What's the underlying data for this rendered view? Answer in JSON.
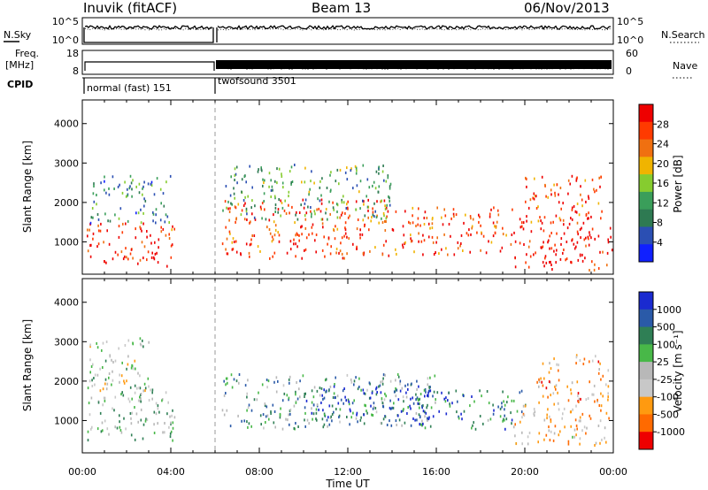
{
  "header": {
    "station": "Inuvik (fitACF)",
    "beam": "Beam 13",
    "date": "06/Nov/2013"
  },
  "left_labels": {
    "nsky": "N.Sky",
    "freq": "Freq.",
    "freq_unit": "[MHz]",
    "cpid": "CPID"
  },
  "right_labels": {
    "nsearch": "N.Search",
    "nave": "Nave"
  },
  "noise_axis_left": [
    "10^5",
    "10^0"
  ],
  "noise_axis_right": [
    "10^5",
    "10^0"
  ],
  "freq_axis_left": [
    "18",
    "8"
  ],
  "nave_axis_right": [
    "60",
    "0"
  ],
  "cpid_segments": [
    {
      "label": "normal (fast) 151",
      "start": 0.0,
      "end": 6.0
    },
    {
      "label": "twofsound 3501",
      "start": 6.0,
      "end": 24.0
    }
  ],
  "colors": {
    "power_scale": [
      "#1020ff",
      "#2b4fb3",
      "#2e7a52",
      "#3a9e5a",
      "#86cc2f",
      "#f0b400",
      "#f07010",
      "#ff3a00",
      "#ee0000"
    ],
    "velocity_scale": [
      "#1a2ad0",
      "#2a5aa8",
      "#2f7f55",
      "#48b848",
      "#b8b8b8",
      "#c8c8c8",
      "#ff9a10",
      "#ff6a00",
      "#ee0000"
    ]
  },
  "chart_data": [
    {
      "type": "heatmap",
      "title": "Power",
      "xlabel": "Time UT",
      "ylabel": "Slant Range [km]",
      "x_ticks": [
        "00:00",
        "04:00",
        "08:00",
        "12:00",
        "16:00",
        "20:00",
        "00:00"
      ],
      "y_ticks": [
        1000,
        2000,
        3000,
        4000
      ],
      "xlim": [
        0,
        24
      ],
      "ylim": [
        180,
        4600
      ],
      "colorbar": {
        "label": "Power [dB]",
        "ticks": [
          4,
          8,
          12,
          16,
          20,
          24,
          28
        ],
        "range": [
          0,
          32
        ]
      },
      "echo_regions": [
        {
          "x": [
            0.2,
            4.2
          ],
          "y": [
            400,
            1500
          ],
          "value": 28
        },
        {
          "x": [
            0.3,
            4.0
          ],
          "y": [
            1500,
            2700
          ],
          "value": 10
        },
        {
          "x": [
            6.3,
            14.0
          ],
          "y": [
            600,
            2100
          ],
          "value": 26
        },
        {
          "x": [
            6.3,
            14.0
          ],
          "y": [
            1600,
            3000
          ],
          "value": 12
        },
        {
          "x": [
            14.0,
            19.5
          ],
          "y": [
            700,
            1900
          ],
          "value": 26
        },
        {
          "x": [
            19.5,
            24.0
          ],
          "y": [
            300,
            1700
          ],
          "value": 30
        },
        {
          "x": [
            20.0,
            23.6
          ],
          "y": [
            1500,
            2700
          ],
          "value": 26
        }
      ]
    },
    {
      "type": "heatmap",
      "title": "Velocity",
      "xlabel": "Time UT",
      "ylabel": "Slant Range [km]",
      "x_ticks": [
        "00:00",
        "04:00",
        "08:00",
        "12:00",
        "16:00",
        "20:00",
        "00:00"
      ],
      "y_ticks": [
        1000,
        2000,
        3000,
        4000
      ],
      "xlim": [
        0,
        24
      ],
      "ylim": [
        180,
        4600
      ],
      "colorbar": {
        "label": "Velocity [m s⁻¹]",
        "ticks": [
          1000,
          500,
          100,
          25,
          -25,
          -100,
          -500,
          -1000
        ],
        "range": [
          -1000,
          1000
        ]
      },
      "echo_regions": [
        {
          "x": [
            0.2,
            4.2
          ],
          "y": [
            500,
            1900
          ],
          "value": 100
        },
        {
          "x": [
            0.3,
            3.0
          ],
          "y": [
            1700,
            3200
          ],
          "value": 0
        },
        {
          "x": [
            6.3,
            16.0
          ],
          "y": [
            800,
            2200
          ],
          "value": 300
        },
        {
          "x": [
            10.0,
            16.0
          ],
          "y": [
            900,
            1900
          ],
          "value": 800
        },
        {
          "x": [
            15.0,
            20.0
          ],
          "y": [
            800,
            1800
          ],
          "value": 500
        },
        {
          "x": [
            19.5,
            23.8
          ],
          "y": [
            400,
            1500
          ],
          "value": -300
        },
        {
          "x": [
            20.5,
            23.8
          ],
          "y": [
            1500,
            2700
          ],
          "value": -400
        }
      ]
    }
  ]
}
